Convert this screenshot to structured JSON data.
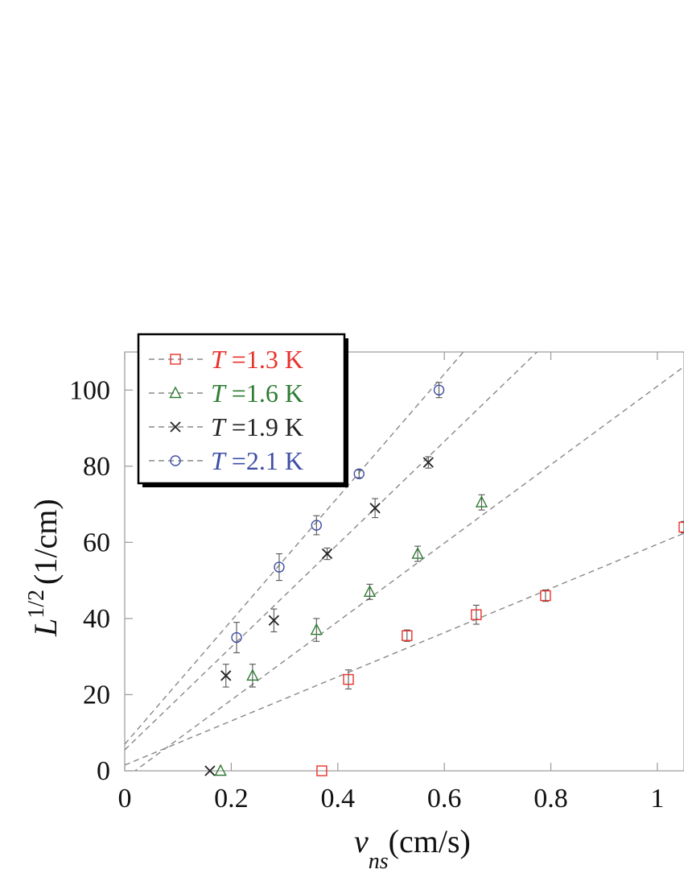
{
  "chart_data": {
    "type": "scatter",
    "xlabel": {
      "main": "v",
      "sub": "ns",
      "unit": "(cm/s)"
    },
    "ylabel": {
      "main": "L",
      "sup": "1/2",
      "unit": "(1/cm)"
    },
    "xlim": [
      0,
      1.05
    ],
    "ylim": [
      0,
      110
    ],
    "x_ticks": [
      0,
      0.2,
      0.4,
      0.6,
      0.8,
      1
    ],
    "x_tick_labels": [
      "0",
      "0.2",
      "0.4",
      "0.6",
      "0.8",
      "1"
    ],
    "y_ticks": [
      0,
      20,
      40,
      60,
      80,
      100
    ],
    "y_tick_labels": [
      "0",
      "20",
      "40",
      "60",
      "80",
      "100"
    ],
    "grid": false,
    "legend_position": "top-left",
    "series": [
      {
        "name": "T =1.3 K",
        "legend": {
          "var": "T",
          "rest": " =1.3 K"
        },
        "color": "#e8322b",
        "marker": "square",
        "x": [
          0.37,
          0.42,
          0.53,
          0.66,
          0.79,
          1.05
        ],
        "y": [
          0,
          24,
          35.5,
          41,
          46,
          64
        ],
        "err": [
          0,
          2.5,
          1.5,
          2.5,
          1.5,
          1.5
        ],
        "fit": {
          "slope": 58,
          "intercept": 1.5
        }
      },
      {
        "name": "T =1.6 K",
        "legend": {
          "var": "T",
          "rest": " =1.6 K"
        },
        "color": "#2e7d32",
        "marker": "triangle",
        "x": [
          0.18,
          0.24,
          0.36,
          0.46,
          0.55,
          0.67
        ],
        "y": [
          0,
          25,
          37,
          47,
          57,
          70.5
        ],
        "err": [
          0,
          3,
          3,
          2,
          2,
          2
        ],
        "fit": {
          "slope": 103,
          "intercept": -2
        }
      },
      {
        "name": "T =1.9 K",
        "legend": {
          "var": "T",
          "rest": " =1.9 K"
        },
        "color": "#222222",
        "marker": "cross",
        "x": [
          0.16,
          0.19,
          0.28,
          0.38,
          0.47,
          0.57
        ],
        "y": [
          0,
          25,
          39.5,
          57,
          69,
          81
        ],
        "err": [
          0,
          3,
          3,
          1.5,
          2.5,
          1.5
        ],
        "fit": {
          "slope": 135,
          "intercept": 5.5
        }
      },
      {
        "name": "T =2.1 K",
        "legend": {
          "var": "T",
          "rest": " =2.1 K"
        },
        "color": "#3f4ea6",
        "marker": "circle",
        "x": [
          0.21,
          0.29,
          0.36,
          0.44,
          0.59
        ],
        "y": [
          35,
          53.5,
          64.5,
          78,
          100
        ],
        "err": [
          4,
          3.5,
          2.5,
          1,
          2
        ],
        "fit": {
          "slope": 162,
          "intercept": 7
        }
      }
    ]
  }
}
